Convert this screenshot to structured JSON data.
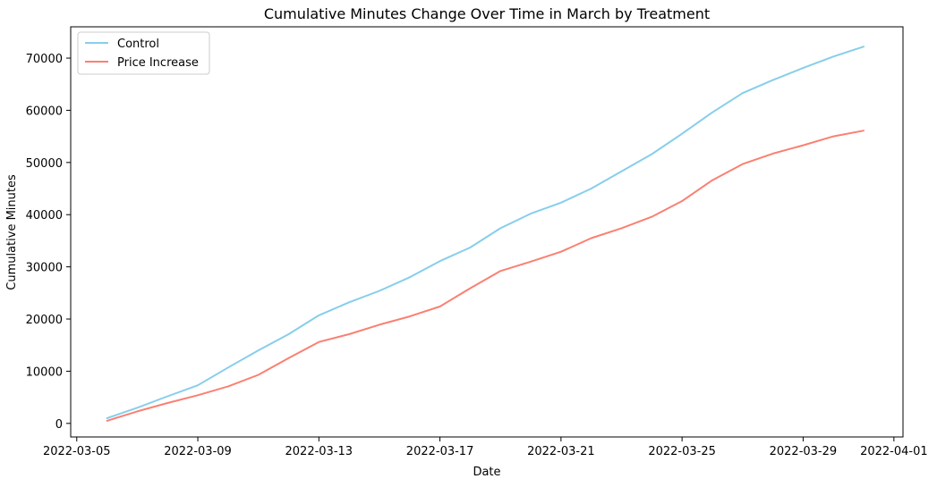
{
  "chart_data": {
    "type": "line",
    "title": "Cumulative Minutes Change Over Time in March by Treatment",
    "xlabel": "Date",
    "ylabel": "Cumulative Minutes",
    "x_tick_labels": [
      "2022-03-05",
      "2022-03-09",
      "2022-03-13",
      "2022-03-17",
      "2022-03-21",
      "2022-03-25",
      "2022-03-29",
      "2022-04-01"
    ],
    "y_tick_labels": [
      "0",
      "10000",
      "20000",
      "30000",
      "40000",
      "50000",
      "60000",
      "70000"
    ],
    "xlim": [
      "2022-03-05",
      "2022-04-01"
    ],
    "ylim": [
      -2600,
      76000
    ],
    "grid": false,
    "legend_position": "upper-left",
    "x": [
      "2022-03-06",
      "2022-03-07",
      "2022-03-08",
      "2022-03-09",
      "2022-03-10",
      "2022-03-11",
      "2022-03-12",
      "2022-03-13",
      "2022-03-14",
      "2022-03-15",
      "2022-03-16",
      "2022-03-17",
      "2022-03-18",
      "2022-03-19",
      "2022-03-20",
      "2022-03-21",
      "2022-03-22",
      "2022-03-23",
      "2022-03-24",
      "2022-03-25",
      "2022-03-26",
      "2022-03-27",
      "2022-03-28",
      "2022-03-29",
      "2022-03-30",
      "2022-03-31"
    ],
    "series": [
      {
        "name": "Control",
        "color": "#87ceeb",
        "values": [
          1000,
          3000,
          5200,
          7300,
          10700,
          14000,
          17100,
          20700,
          23200,
          25400,
          28000,
          31100,
          33700,
          37400,
          40200,
          42300,
          45000,
          48300,
          51600,
          55500,
          59600,
          63300,
          65800,
          68100,
          70300,
          72200
        ]
      },
      {
        "name": "Price Increase",
        "color": "#fa8072",
        "values": [
          500,
          2300,
          3900,
          5400,
          7100,
          9300,
          12500,
          15600,
          17100,
          18900,
          20500,
          22400,
          25900,
          29200,
          31000,
          32900,
          35500,
          37400,
          39600,
          42600,
          46600,
          49700,
          51700,
          53300,
          55000,
          56100
        ]
      }
    ]
  }
}
